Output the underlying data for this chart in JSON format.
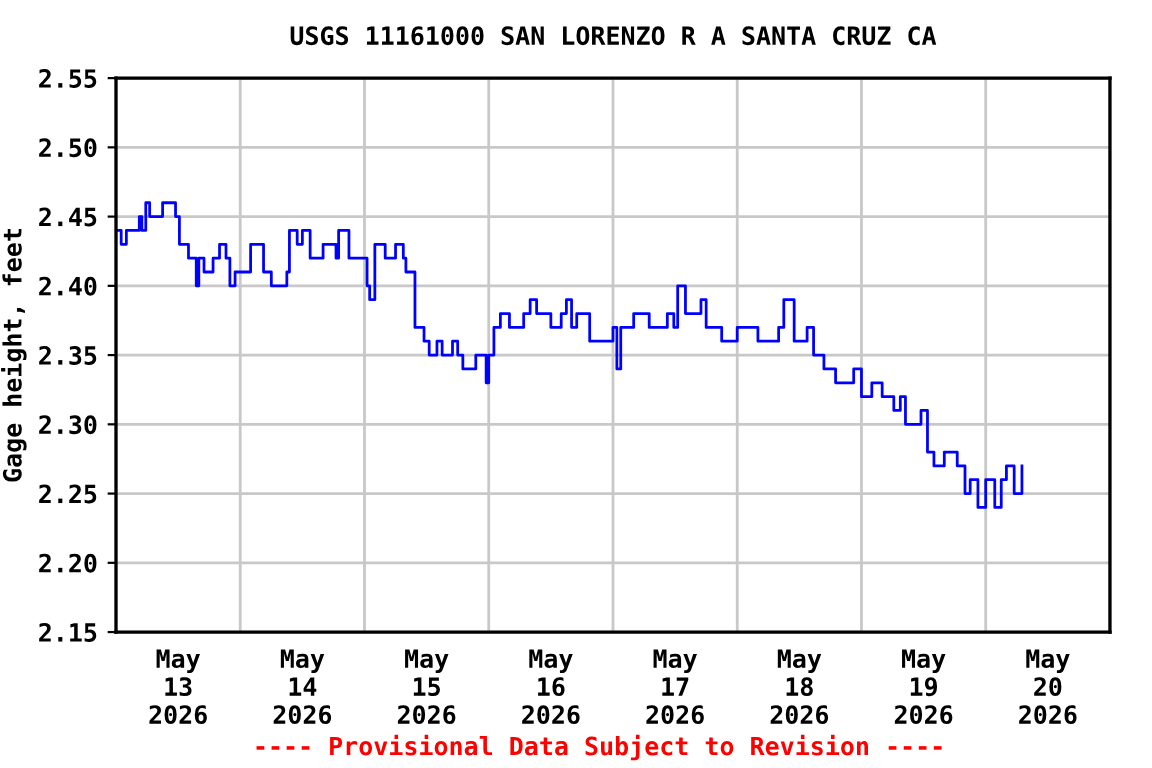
{
  "chart_data": {
    "type": "step",
    "title": "USGS 11161000 SAN LORENZO R A SANTA CRUZ CA",
    "ylabel": "Gage height, feet",
    "annotations": [
      "---- Provisional Data Subject to Revision ----"
    ],
    "x": [
      "2026-05-13T00:00",
      "2026-05-13T01:00",
      "2026-05-13T02:00",
      "2026-05-13T03:00",
      "2026-05-13T04:30",
      "2026-05-13T05:00",
      "2026-05-13T05:45",
      "2026-05-13T06:30",
      "2026-05-13T09:00",
      "2026-05-13T11:30",
      "2026-05-13T12:15",
      "2026-05-13T14:00",
      "2026-05-13T15:30",
      "2026-05-13T16:00",
      "2026-05-13T17:00",
      "2026-05-13T18:45",
      "2026-05-13T20:00",
      "2026-05-13T21:15",
      "2026-05-13T22:00",
      "2026-05-13T23:00",
      "2026-05-14T00:30",
      "2026-05-14T02:00",
      "2026-05-14T04:30",
      "2026-05-14T06:00",
      "2026-05-14T09:00",
      "2026-05-14T09:30",
      "2026-05-14T11:00",
      "2026-05-14T12:00",
      "2026-05-14T13:30",
      "2026-05-14T16:00",
      "2026-05-14T18:30",
      "2026-05-14T19:00",
      "2026-05-14T21:00",
      "2026-05-14T23:45",
      "2026-05-15T00:30",
      "2026-05-15T01:00",
      "2026-05-15T02:00",
      "2026-05-15T04:00",
      "2026-05-15T06:00",
      "2026-05-15T07:30",
      "2026-05-15T08:00",
      "2026-05-15T09:45",
      "2026-05-15T11:30",
      "2026-05-15T12:30",
      "2026-05-15T14:00",
      "2026-05-15T15:00",
      "2026-05-15T17:00",
      "2026-05-15T18:00",
      "2026-05-15T19:00",
      "2026-05-15T21:30",
      "2026-05-15T23:30",
      "2026-05-16T00:00",
      "2026-05-16T01:00",
      "2026-05-16T02:15",
      "2026-05-16T04:00",
      "2026-05-16T06:45",
      "2026-05-16T08:00",
      "2026-05-16T09:15",
      "2026-05-16T12:00",
      "2026-05-16T14:00",
      "2026-05-16T15:00",
      "2026-05-16T16:00",
      "2026-05-16T17:00",
      "2026-05-16T19:30",
      "2026-05-16T22:00",
      "2026-05-17T00:00",
      "2026-05-17T00:45",
      "2026-05-17T01:30",
      "2026-05-17T04:00",
      "2026-05-17T07:00",
      "2026-05-17T10:30",
      "2026-05-17T11:45",
      "2026-05-17T12:30",
      "2026-05-17T14:00",
      "2026-05-17T17:00",
      "2026-05-17T18:00",
      "2026-05-17T21:00",
      "2026-05-18T00:00",
      "2026-05-18T04:00",
      "2026-05-18T08:00",
      "2026-05-18T09:00",
      "2026-05-18T11:00",
      "2026-05-18T13:30",
      "2026-05-18T14:45",
      "2026-05-18T16:45",
      "2026-05-18T19:00",
      "2026-05-18T22:30",
      "2026-05-19T00:00",
      "2026-05-19T02:00",
      "2026-05-19T04:00",
      "2026-05-19T06:15",
      "2026-05-19T07:30",
      "2026-05-19T08:30",
      "2026-05-19T11:30",
      "2026-05-19T12:45",
      "2026-05-19T14:00",
      "2026-05-19T16:00",
      "2026-05-19T18:30",
      "2026-05-19T20:00",
      "2026-05-19T21:00",
      "2026-05-19T22:30",
      "2026-05-20T00:00",
      "2026-05-20T01:45",
      "2026-05-20T03:00",
      "2026-05-20T04:00",
      "2026-05-20T05:30",
      "2026-05-20T07:00"
    ],
    "series": [
      {
        "color": "#0000ff",
        "values": [
          2.44,
          2.43,
          2.44,
          2.44,
          2.45,
          2.44,
          2.46,
          2.45,
          2.46,
          2.45,
          2.43,
          2.42,
          2.4,
          2.42,
          2.41,
          2.42,
          2.43,
          2.42,
          2.4,
          2.41,
          2.41,
          2.43,
          2.41,
          2.4,
          2.41,
          2.44,
          2.43,
          2.44,
          2.42,
          2.43,
          2.42,
          2.44,
          2.42,
          2.42,
          2.4,
          2.39,
          2.43,
          2.42,
          2.43,
          2.42,
          2.41,
          2.37,
          2.36,
          2.35,
          2.36,
          2.35,
          2.36,
          2.35,
          2.34,
          2.35,
          2.33,
          2.35,
          2.37,
          2.38,
          2.37,
          2.38,
          2.39,
          2.38,
          2.37,
          2.38,
          2.39,
          2.37,
          2.38,
          2.36,
          2.36,
          2.37,
          2.34,
          2.37,
          2.38,
          2.37,
          2.38,
          2.37,
          2.4,
          2.38,
          2.39,
          2.37,
          2.36,
          2.37,
          2.36,
          2.37,
          2.39,
          2.36,
          2.37,
          2.35,
          2.34,
          2.33,
          2.34,
          2.32,
          2.33,
          2.32,
          2.31,
          2.32,
          2.3,
          2.31,
          2.28,
          2.27,
          2.28,
          2.27,
          2.25,
          2.26,
          2.24,
          2.26,
          2.24,
          2.26,
          2.27,
          2.25,
          2.27
        ]
      }
    ],
    "xlim": [
      "2026-05-13T00:00",
      "2026-05-21T00:00"
    ],
    "xticks": [
      {
        "value": "2026-05-13T12:00",
        "label": "May\n13\n2026"
      },
      {
        "value": "2026-05-14T12:00",
        "label": "May\n14\n2026"
      },
      {
        "value": "2026-05-15T12:00",
        "label": "May\n15\n2026"
      },
      {
        "value": "2026-05-16T12:00",
        "label": "May\n16\n2026"
      },
      {
        "value": "2026-05-17T12:00",
        "label": "May\n17\n2026"
      },
      {
        "value": "2026-05-18T12:00",
        "label": "May\n18\n2026"
      },
      {
        "value": "2026-05-19T12:00",
        "label": "May\n19\n2026"
      },
      {
        "value": "2026-05-20T12:00",
        "label": "May\n20\n2026"
      },
      {
        "value": "2026-05-14T00:00",
        "label": null
      },
      {
        "value": "2026-05-15T00:00",
        "label": null
      },
      {
        "value": "2026-05-16T00:00",
        "label": null
      },
      {
        "value": "2026-05-17T00:00",
        "label": null
      },
      {
        "value": "2026-05-18T00:00",
        "label": null
      },
      {
        "value": "2026-05-19T00:00",
        "label": null
      },
      {
        "value": "2026-05-20T00:00",
        "label": null
      }
    ],
    "ylim": [
      2.15,
      2.55
    ],
    "yticks": [
      2.15,
      {
        "value": 2.2,
        "label": "2.20"
      },
      2.25,
      {
        "value": 2.3,
        "label": "2.30"
      },
      2.35,
      {
        "value": 2.4,
        "label": "2.40"
      },
      2.45,
      {
        "value": 2.5,
        "label": "2.50"
      },
      2.55
    ],
    "grid": true,
    "legend": false
  }
}
